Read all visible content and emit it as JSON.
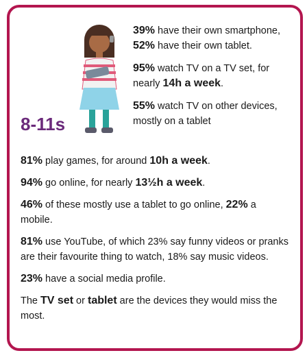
{
  "age_label": "8-11s",
  "side_paragraphs": [
    [
      {
        "text": "39%",
        "bold": true
      },
      {
        "text": " have their own smartphone, "
      },
      {
        "text": "52%",
        "bold": true
      },
      {
        "text": " have their own tablet."
      }
    ],
    [
      {
        "text": "95%",
        "bold": true
      },
      {
        "text": " watch TV on a TV set, for nearly "
      },
      {
        "text": "14h a week",
        "bold": true
      },
      {
        "text": "."
      }
    ],
    [
      {
        "text": "55%",
        "bold": true
      },
      {
        "text": " watch TV on other devices, mostly on a tablet"
      }
    ]
  ],
  "paragraphs": [
    [
      {
        "text": "81%",
        "bold": true
      },
      {
        "text": " play games, for around "
      },
      {
        "text": "10h a week",
        "bold": true
      },
      {
        "text": "."
      }
    ],
    [
      {
        "text": "94%",
        "bold": true
      },
      {
        "text": " go online, for nearly "
      },
      {
        "text": "13½h a week",
        "bold": true
      },
      {
        "text": "."
      }
    ],
    [
      {
        "text": "46%",
        "bold": true
      },
      {
        "text": " of these mostly use a tablet to go online, "
      },
      {
        "text": "22%",
        "bold": true
      },
      {
        "text": " a mobile."
      }
    ],
    [
      {
        "text": "81%",
        "bold": true
      },
      {
        "text": " use YouTube, of which 23% say funny videos or pranks are their favourite thing to watch, 18% say music videos."
      }
    ],
    [
      {
        "text": "23%",
        "bold": true
      },
      {
        "text": " have a social media profile."
      }
    ],
    [
      {
        "text": "The "
      },
      {
        "text": "TV set",
        "bold": true
      },
      {
        "text": " or "
      },
      {
        "text": "tablet",
        "bold": true
      },
      {
        "text": " are the devices they would miss the most."
      }
    ]
  ]
}
